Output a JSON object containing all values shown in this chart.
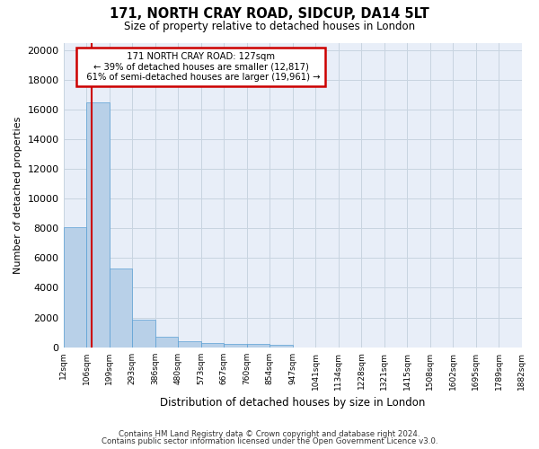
{
  "title": "171, NORTH CRAY ROAD, SIDCUP, DA14 5LT",
  "subtitle": "Size of property relative to detached houses in London",
  "xlabel": "Distribution of detached houses by size in London",
  "ylabel": "Number of detached properties",
  "bar_color": "#b8d0e8",
  "bar_edge_color": "#5a9fd4",
  "grid_color": "#c8d4e0",
  "background_color": "#e8eef8",
  "annotation_box_color": "#cc0000",
  "footnote1": "Contains HM Land Registry data © Crown copyright and database right 2024.",
  "footnote2": "Contains public sector information licensed under the Open Government Licence v3.0.",
  "property_label": "171 NORTH CRAY ROAD: 127sqm",
  "smaller_pct": 39,
  "smaller_count": "12,817",
  "larger_pct": 61,
  "larger_count": "19,961",
  "bin_edges": [
    12,
    106,
    199,
    293,
    386,
    480,
    573,
    667,
    760,
    854,
    947,
    1041,
    1134,
    1228,
    1321,
    1415,
    1508,
    1602,
    1695,
    1789,
    1882
  ],
  "bin_heights": [
    8100,
    16500,
    5300,
    1850,
    700,
    380,
    290,
    230,
    200,
    180,
    0,
    0,
    0,
    0,
    0,
    0,
    0,
    0,
    0,
    0
  ],
  "ylim": [
    0,
    20500
  ],
  "yticks": [
    0,
    2000,
    4000,
    6000,
    8000,
    10000,
    12000,
    14000,
    16000,
    18000,
    20000
  ],
  "vline_x": 127,
  "vline_color": "#cc0000"
}
